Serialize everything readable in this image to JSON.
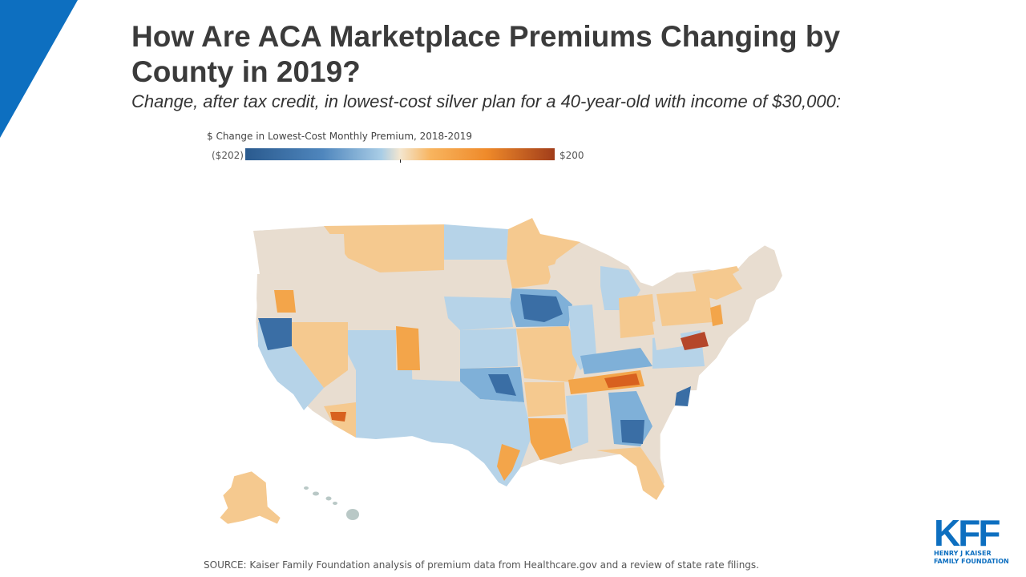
{
  "header": {
    "title": "How Are ACA Marketplace Premiums Changing by County in 2019?",
    "subtitle": "Change, after tax credit, in lowest-cost silver plan for a 40-year-old with income of $30,000:"
  },
  "legend": {
    "title": "$ Change in Lowest-Cost Monthly Premium, 2018-2019",
    "min_label": "($202)",
    "max_label": "$200",
    "min_value": -202,
    "max_value": 200,
    "colors": [
      "#2a5a8e",
      "#4f86bd",
      "#a9cde6",
      "#f3e6cf",
      "#f8b45e",
      "#ef8a2a",
      "#a13d1a"
    ]
  },
  "map": {
    "subject": "United States counties",
    "colors": {
      "neutral": "#e8ddd0",
      "light_blue": "#b6d3e8",
      "blue": "#7fb0d8",
      "dark_blue": "#3a6ea5",
      "light_orange": "#f5c98f",
      "orange": "#f3a54a",
      "dark_orange": "#d8611f",
      "red_brown": "#b5462a"
    }
  },
  "source": "SOURCE: Kaiser Family Foundation analysis of premium data from Healthcare.gov and a review of state rate filings.",
  "logo": {
    "mark": "KFF",
    "line1": "HENRY J KAISER",
    "line2": "FAMILY FOUNDATION"
  },
  "brand_color": "#0d6fc0"
}
